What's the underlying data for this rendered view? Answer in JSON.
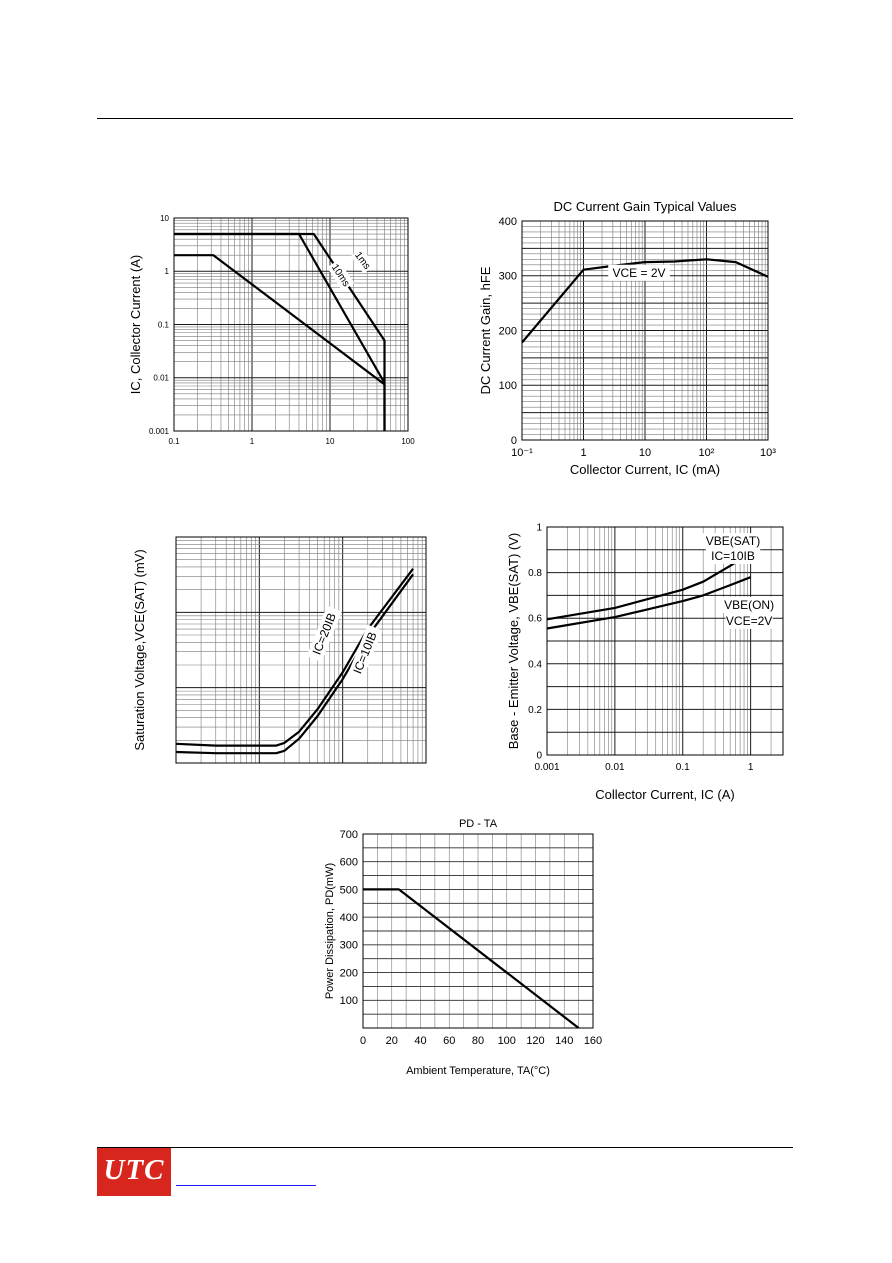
{
  "page": {
    "footer": {
      "logo_text": "UTC"
    }
  },
  "chart_data": [
    {
      "id": "soa",
      "type": "line",
      "title": "",
      "xlabel": "",
      "ylabel": "IC, Collector Current (A)",
      "xscale": "log",
      "yscale": "log",
      "xlim": [
        0.1,
        100
      ],
      "ylim": [
        0.001,
        10
      ],
      "xticks": [
        0.1,
        1,
        10,
        100
      ],
      "xtick_labels": [
        "0.1",
        "1",
        "10",
        "100"
      ],
      "yticks": [
        0.001,
        0.01,
        0.1,
        1,
        10
      ],
      "ytick_labels": [
        "0.001",
        "0.01",
        "0.1",
        "1",
        "10"
      ],
      "series": [
        {
          "name": "",
          "points": [
            [
              0.1,
              2
            ],
            [
              0.32,
              2
            ],
            [
              50,
              0.0075
            ],
            [
              50,
              0.001
            ]
          ]
        },
        {
          "name": "",
          "points": [
            [
              0.1,
              5
            ],
            [
              4,
              5
            ],
            [
              50,
              0.008
            ]
          ]
        },
        {
          "name": "",
          "points": [
            [
              0.1,
              5
            ],
            [
              6.2,
              5
            ],
            [
              50,
              0.05
            ],
            [
              50,
              0.001
            ]
          ]
        }
      ],
      "annotations": [
        {
          "text": "10ms",
          "x": 13,
          "y": 0.8,
          "rotate": 57
        },
        {
          "text": "1ms",
          "x": 25,
          "y": 1.5,
          "rotate": 53
        }
      ]
    },
    {
      "id": "hfe",
      "type": "line",
      "title": "DC Current Gain Typical Values",
      "xlabel": "Collector Current, IC (mA)",
      "ylabel": "DC Current Gain, hFE",
      "xscale": "log",
      "yscale": "linear",
      "xlim": [
        0.1,
        1000
      ],
      "ylim": [
        0,
        400
      ],
      "xticks": [
        0.1,
        1,
        10,
        100,
        1000
      ],
      "xtick_labels": [
        "10⁻¹",
        "1",
        "10",
        "10²",
        "10³"
      ],
      "yticks": [
        0,
        100,
        200,
        300,
        400
      ],
      "ytick_labels": [
        "0",
        "100",
        "200",
        "300",
        "400"
      ],
      "series": [
        {
          "name": "",
          "points": [
            [
              0.1,
              178
            ],
            [
              1,
              311
            ],
            [
              3,
              318
            ],
            [
              10,
              325
            ],
            [
              30,
              326
            ],
            [
              100,
              330
            ],
            [
              300,
              325
            ],
            [
              1000,
              298
            ]
          ]
        }
      ],
      "annotations": [
        {
          "text": "VCE = 2V",
          "x": 8,
          "y": 300,
          "rotate": 0
        }
      ]
    },
    {
      "id": "vcesat",
      "type": "line",
      "title": "",
      "xlabel": "",
      "ylabel": "Saturation Voltage,VCE(SAT) (mV)",
      "xscale": "log",
      "yscale": "log",
      "xlim": [
        0.1,
        100
      ],
      "ylim": [
        1,
        1000
      ],
      "xticks": [],
      "xtick_labels": [],
      "yticks": [],
      "ytick_labels": [],
      "series": [
        {
          "name": "",
          "points": [
            [
              0.1,
              1.8
            ],
            [
              0.3,
              1.7
            ],
            [
              1,
              1.7
            ],
            [
              1.6,
              1.7
            ],
            [
              2,
              1.85
            ],
            [
              3,
              2.6
            ],
            [
              5,
              5.2
            ],
            [
              10,
              16
            ],
            [
              20,
              60
            ],
            [
              70,
              380
            ]
          ]
        },
        {
          "name": "",
          "points": [
            [
              0.1,
              1.4
            ],
            [
              0.3,
              1.35
            ],
            [
              1,
              1.35
            ],
            [
              1.6,
              1.35
            ],
            [
              2,
              1.45
            ],
            [
              3,
              2.1
            ],
            [
              5,
              4.2
            ],
            [
              10,
              13
            ],
            [
              20,
              48
            ],
            [
              70,
              320
            ]
          ]
        }
      ],
      "annotations": [
        {
          "text": "IC=20IB",
          "x": 6.5,
          "y": 50,
          "rotate": -68
        },
        {
          "text": "IC=10IB",
          "x": 20,
          "y": 28,
          "rotate": -68
        }
      ]
    },
    {
      "id": "vbe",
      "type": "line",
      "title": "",
      "xlabel": "Collector Current, IC (A)",
      "ylabel": "Base - Emitter Voltage, VBE(SAT) (V)",
      "xscale": "log",
      "yscale": "linear",
      "xlim": [
        0.001,
        3
      ],
      "ylim": [
        0,
        1
      ],
      "xticks": [
        0.001,
        0.01,
        0.1,
        1
      ],
      "xtick_labels": [
        "0.001",
        "0.01",
        "0.1",
        "1"
      ],
      "yticks": [
        0,
        0.2,
        0.4,
        0.6,
        0.8,
        1
      ],
      "ytick_labels": [
        "0",
        "0.2",
        "0.4",
        "0.6",
        "0.8",
        "1"
      ],
      "series": [
        {
          "name": "",
          "points": [
            [
              0.001,
              0.595
            ],
            [
              0.01,
              0.645
            ],
            [
              0.1,
              0.725
            ],
            [
              0.2,
              0.76
            ],
            [
              0.5,
              0.83
            ],
            [
              1,
              0.885
            ]
          ]
        },
        {
          "name": "",
          "points": [
            [
              0.001,
              0.555
            ],
            [
              0.01,
              0.605
            ],
            [
              0.1,
              0.675
            ],
            [
              0.2,
              0.7
            ],
            [
              0.5,
              0.745
            ],
            [
              1,
              0.78
            ]
          ]
        }
      ],
      "annotations": [
        {
          "text": "VBE(SAT)",
          "x": 0.55,
          "y": 0.925,
          "rotate": 0
        },
        {
          "text": "IC=10IB",
          "x": 0.55,
          "y": 0.86,
          "rotate": 0
        },
        {
          "text": "VBE(ON)",
          "x": 0.95,
          "y": 0.645,
          "rotate": 0
        },
        {
          "text": "VCE=2V",
          "x": 0.95,
          "y": 0.575,
          "rotate": 0
        }
      ]
    },
    {
      "id": "pdta",
      "type": "line",
      "title": "PD - TA",
      "xlabel": "Ambient Temperature, TA(°C)",
      "ylabel": "Power Dissipation, PD(mW)",
      "xscale": "linear",
      "yscale": "linear",
      "xlim": [
        0,
        160
      ],
      "ylim": [
        0,
        700
      ],
      "xticks": [
        0,
        20,
        40,
        60,
        80,
        100,
        120,
        140,
        160
      ],
      "xtick_labels": [
        "0",
        "20",
        "40",
        "60",
        "80",
        "100",
        "120",
        "140",
        "160"
      ],
      "yticks": [
        100,
        200,
        300,
        400,
        500,
        600,
        700
      ],
      "ytick_labels": [
        "100",
        "200",
        "300",
        "400",
        "500",
        "600",
        "700"
      ],
      "series": [
        {
          "name": "",
          "points": [
            [
              0,
              500
            ],
            [
              25,
              500
            ],
            [
              150,
              0
            ]
          ]
        }
      ],
      "annotations": []
    }
  ]
}
